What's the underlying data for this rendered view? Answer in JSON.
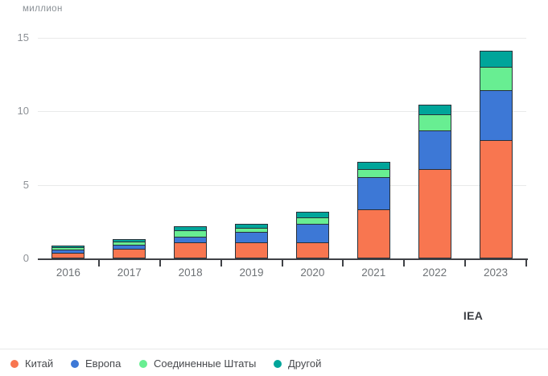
{
  "chart_data": {
    "type": "bar",
    "stacked": true,
    "title": "",
    "ylabel": "миллион",
    "xlabel": "",
    "source": "IEA",
    "categories": [
      "2016",
      "2017",
      "2018",
      "2019",
      "2020",
      "2021",
      "2022",
      "2023"
    ],
    "series": [
      {
        "name": "Китай",
        "color": "#f87650",
        "values": [
          0.35,
          0.6,
          1.05,
          1.05,
          1.05,
          3.3,
          6.0,
          8.0
        ]
      },
      {
        "name": "Европа",
        "color": "#3d78d6",
        "values": [
          0.2,
          0.3,
          0.4,
          0.7,
          1.25,
          2.2,
          2.65,
          3.4
        ]
      },
      {
        "name": "Соединенные Штаты",
        "color": "#68ee92",
        "values": [
          0.15,
          0.2,
          0.4,
          0.3,
          0.45,
          0.5,
          1.1,
          1.6
        ]
      },
      {
        "name": "Другой",
        "color": "#00a59a",
        "values": [
          0.05,
          0.1,
          0.25,
          0.2,
          0.3,
          0.45,
          0.6,
          1.0
        ]
      }
    ],
    "ylim": [
      0,
      15
    ],
    "yticks": [
      0,
      5,
      10,
      15
    ],
    "grid": true,
    "legend_position": "bottom",
    "colors": {
      "axis": "#3f4146",
      "gridline": "#e9eaea",
      "bar_outline": "#283039",
      "tick_text": "#8d9196",
      "category_text": "#6e7276"
    }
  }
}
